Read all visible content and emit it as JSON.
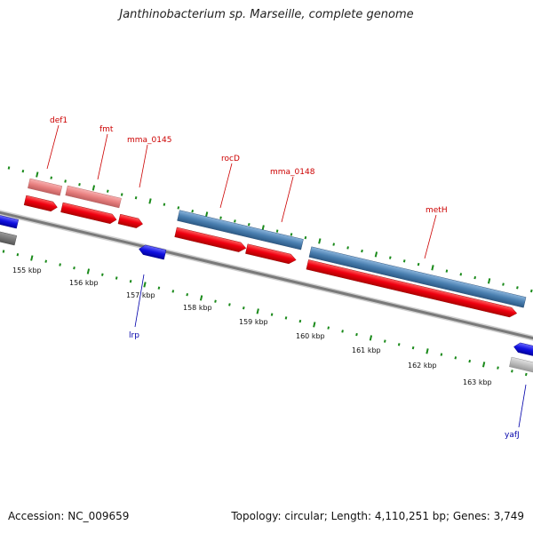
{
  "title": "Janthinobacterium sp. Marseille, complete genome",
  "footer": {
    "accession": "Accession: NC_009659",
    "summary": "Topology: circular; Length: 4,110,251 bp; Genes: 3,749"
  },
  "colors": {
    "forward_cds": "#e8000a",
    "forward_cds_light": "#e88080",
    "reverse_cds": "#1010e0",
    "rna_steel": "#4a7fb0",
    "backbone": "#888888",
    "tick": "#1a8a1a",
    "forward_label": "#cc0000",
    "reverse_label": "#0000aa"
  },
  "scale": {
    "unit": "kbp",
    "tick_labels": [
      "155 kbp",
      "156 kbp",
      "157 kbp",
      "158 kbp",
      "159 kbp",
      "160 kbp",
      "161 kbp",
      "162 kbp",
      "163 kbp"
    ]
  },
  "genes": {
    "forward_labels": [
      "def1",
      "fmt",
      "mma_0145",
      "rocD",
      "mma_0148",
      "metH"
    ],
    "reverse_labels": [
      "lrp",
      "yafJ"
    ]
  }
}
